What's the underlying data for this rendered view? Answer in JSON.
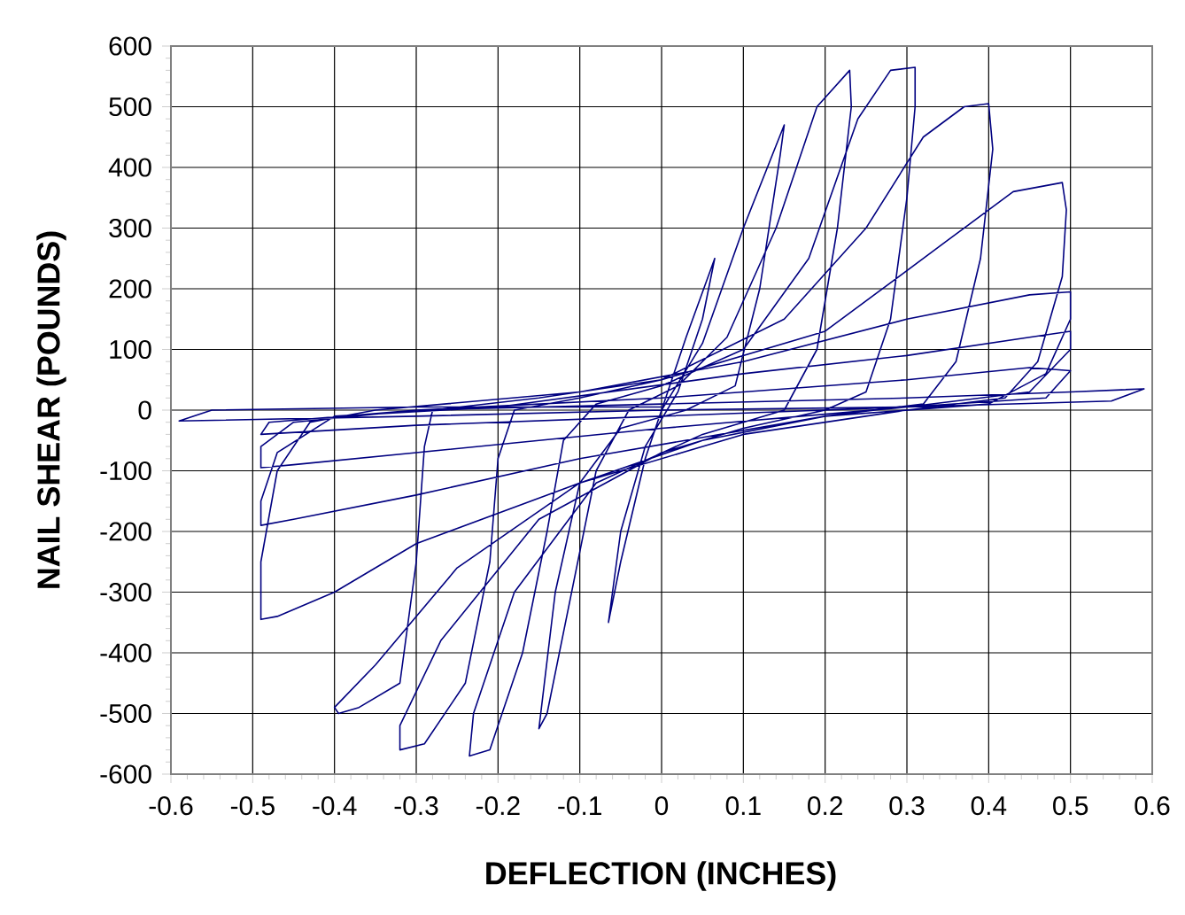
{
  "chart_data": {
    "type": "line",
    "xlabel": "DEFLECTION (INCHES)",
    "ylabel": "NAIL SHEAR (POUNDS)",
    "xlim": [
      -0.6,
      0.6
    ],
    "ylim": [
      -600,
      600
    ],
    "xticks": [
      -0.6,
      -0.5,
      -0.4,
      -0.3,
      -0.2,
      -0.1,
      0,
      0.1,
      0.2,
      0.3,
      0.4,
      0.5,
      0.6
    ],
    "yticks": [
      -600,
      -500,
      -400,
      -300,
      -200,
      -100,
      0,
      100,
      200,
      300,
      400,
      500,
      600
    ],
    "grid": true,
    "marker": "none",
    "line_style": "solid",
    "series": [
      {
        "color": "#000080",
        "x": [
          0,
          0.03,
          0.065,
          0.05,
          0.02,
          -0.02,
          -0.05,
          -0.065,
          -0.05,
          -0.02,
          0,
          0.05,
          0.1,
          0.15,
          0.145,
          0.12,
          0.09,
          0.03,
          -0.05,
          -0.1,
          -0.13,
          -0.15,
          -0.14,
          -0.11,
          -0.08,
          -0.04,
          0.02,
          0.08,
          0.14,
          0.19,
          0.23,
          0.232,
          0.215,
          0.19,
          0.15,
          0.05,
          -0.08,
          -0.18,
          -0.23,
          -0.235,
          -0.21,
          -0.17,
          -0.14,
          -0.12,
          -0.08,
          0,
          0.1,
          0.18,
          0.24,
          0.28,
          0.31,
          0.31,
          0.3,
          0.28,
          0.25,
          0.2,
          0.1,
          0,
          -0.15,
          -0.27,
          -0.32,
          -0.32,
          -0.29,
          -0.24,
          -0.21,
          -0.2,
          -0.18,
          -0.1,
          0,
          0.15,
          0.25,
          0.32,
          0.37,
          0.4,
          0.405,
          0.39,
          0.36,
          0.32,
          0.2,
          0.05,
          -0.1,
          -0.25,
          -0.35,
          -0.4,
          -0.395,
          -0.37,
          -0.32,
          -0.3,
          -0.29,
          -0.28,
          -0.15,
          0,
          0.2,
          0.35,
          0.43,
          0.49,
          0.495,
          0.49,
          0.46,
          0.42,
          0.3,
          0.1,
          -0.1,
          -0.3,
          -0.4,
          -0.47,
          -0.49,
          -0.49,
          -0.47,
          -0.43,
          -0.35,
          -0.1,
          0.1,
          0.3,
          0.45,
          0.5,
          0.5,
          0.47,
          0.4,
          0.2,
          -0.1,
          -0.3,
          -0.45,
          -0.49,
          -0.49,
          -0.47,
          -0.4,
          -0.2,
          0.1,
          0.3,
          0.45,
          0.5,
          0.5,
          0.45,
          0.3,
          0,
          -0.3,
          -0.45,
          -0.49,
          -0.49,
          -0.45,
          -0.3,
          0,
          0.3,
          0.45,
          0.5,
          0.47,
          0.3,
          0,
          -0.3,
          -0.49,
          -0.48,
          -0.3,
          0,
          0.3,
          0.5,
          0.59,
          0.55,
          0.3,
          0,
          -0.3,
          -0.59,
          -0.55,
          -0.3,
          0
        ],
        "values": [
          0,
          120,
          250,
          150,
          30,
          -60,
          -200,
          -350,
          -250,
          -80,
          0,
          110,
          300,
          470,
          420,
          200,
          40,
          0,
          -30,
          -120,
          -300,
          -525,
          -500,
          -300,
          -100,
          0,
          40,
          120,
          300,
          500,
          560,
          500,
          300,
          100,
          0,
          -40,
          -120,
          -300,
          -500,
          -570,
          -560,
          -400,
          -200,
          -50,
          10,
          40,
          100,
          250,
          480,
          560,
          565,
          500,
          350,
          150,
          30,
          0,
          -30,
          -70,
          -180,
          -380,
          -520,
          -560,
          -550,
          -450,
          -250,
          -80,
          0,
          20,
          50,
          150,
          300,
          450,
          500,
          505,
          430,
          250,
          80,
          10,
          -10,
          -50,
          -120,
          -260,
          -420,
          -490,
          -500,
          -490,
          -450,
          -250,
          -60,
          0,
          20,
          50,
          130,
          280,
          360,
          375,
          330,
          220,
          80,
          20,
          0,
          -40,
          -120,
          -220,
          -300,
          -340,
          -345,
          -250,
          -100,
          -20,
          0,
          30,
          80,
          150,
          190,
          195,
          150,
          60,
          10,
          -10,
          -80,
          -140,
          -180,
          -190,
          -150,
          -70,
          -10,
          5,
          60,
          90,
          120,
          130,
          100,
          30,
          5,
          -30,
          -70,
          -90,
          -95,
          -60,
          -20,
          0,
          20,
          50,
          70,
          65,
          20,
          5,
          -10,
          -25,
          -40,
          -20,
          0,
          10,
          20,
          30,
          35,
          15,
          5,
          0,
          -10,
          -18,
          0,
          5,
          5
        ]
      }
    ]
  }
}
